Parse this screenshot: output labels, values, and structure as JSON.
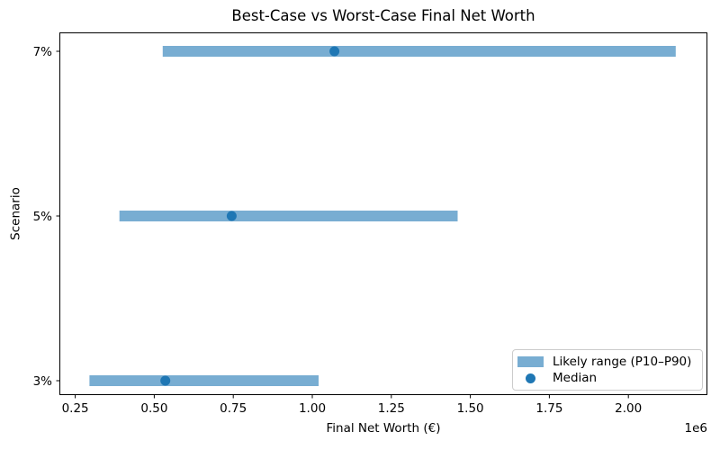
{
  "chart_data": {
    "type": "bar",
    "orientation": "horizontal",
    "title": "Best-Case vs Worst-Case Final Net Worth",
    "xlabel": "Final Net Worth (€)",
    "ylabel": "Scenario",
    "x_offset_text": "1e6",
    "categories": [
      "3%",
      "5%",
      "7%"
    ],
    "series": [
      {
        "name": "Likely range (P10–P90)",
        "type": "range_bar",
        "p10": [
          295000,
          390000,
          527000
        ],
        "p90": [
          1020000,
          1460000,
          2150000
        ]
      },
      {
        "name": "Median",
        "type": "point",
        "values": [
          535000,
          745000,
          1070000
        ]
      }
    ],
    "xlim": [
      200000,
      2250000
    ],
    "xticks": {
      "values": [
        250000,
        500000,
        750000,
        1000000,
        1250000,
        1500000,
        1750000,
        2000000
      ],
      "labels": [
        "0.25",
        "0.50",
        "0.75",
        "1.00",
        "1.25",
        "1.50",
        "1.75",
        "2.00"
      ]
    },
    "grid": false,
    "legend_position": "lower right",
    "colors": {
      "range_bar": "#78add2",
      "median": "#1f77b4",
      "spine": "#000000",
      "text": "#000000"
    }
  }
}
